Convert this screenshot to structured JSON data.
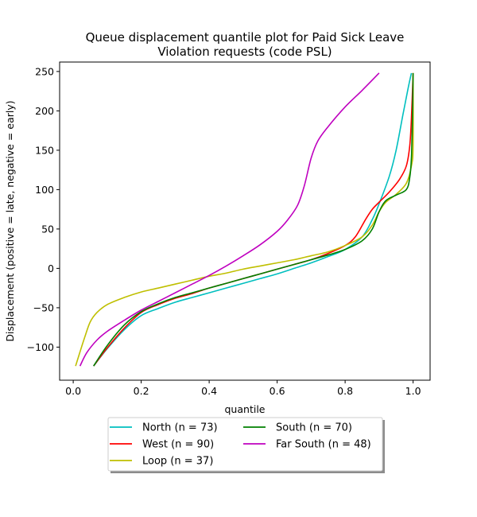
{
  "chart_data": {
    "type": "line",
    "title_lines": [
      "Queue displacement quantile plot for Paid Sick Leave",
      "Violation  requests (code PSL)"
    ],
    "xlabel": "quantile",
    "ylabel": "Displacement (positive = late, negative = early)",
    "xlim": [
      -0.04,
      1.05
    ],
    "ylim": [
      -142,
      262
    ],
    "xticks": [
      0.0,
      0.2,
      0.4,
      0.6,
      0.8,
      1.0
    ],
    "xtick_labels": [
      "0.0",
      "0.2",
      "0.4",
      "0.6",
      "0.8",
      "1.0"
    ],
    "yticks": [
      -100,
      -50,
      0,
      50,
      100,
      150,
      200,
      250
    ],
    "ytick_labels": [
      "−100",
      "−50",
      "0",
      "50",
      "100",
      "150",
      "200",
      "250"
    ],
    "grid": false,
    "legend_position": "bottom-center",
    "series": [
      {
        "name": "North (n = 73)",
        "color": "#00bfbf",
        "points": [
          [
            0.06,
            -124
          ],
          [
            0.1,
            -102
          ],
          [
            0.15,
            -78
          ],
          [
            0.2,
            -60
          ],
          [
            0.25,
            -51
          ],
          [
            0.3,
            -43
          ],
          [
            0.35,
            -37
          ],
          [
            0.4,
            -31
          ],
          [
            0.45,
            -25
          ],
          [
            0.5,
            -19
          ],
          [
            0.55,
            -13
          ],
          [
            0.6,
            -7
          ],
          [
            0.65,
            0
          ],
          [
            0.7,
            7
          ],
          [
            0.75,
            15
          ],
          [
            0.8,
            24
          ],
          [
            0.85,
            40
          ],
          [
            0.88,
            62
          ],
          [
            0.9,
            82
          ],
          [
            0.93,
            117
          ],
          [
            0.95,
            150
          ],
          [
            0.97,
            195
          ],
          [
            0.985,
            228
          ],
          [
            0.995,
            248
          ]
        ]
      },
      {
        "name": "West (n = 90)",
        "color": "#ff0000",
        "points": [
          [
            0.06,
            -124
          ],
          [
            0.1,
            -101
          ],
          [
            0.15,
            -76
          ],
          [
            0.2,
            -56
          ],
          [
            0.25,
            -46
          ],
          [
            0.3,
            -38
          ],
          [
            0.35,
            -32
          ],
          [
            0.4,
            -25
          ],
          [
            0.45,
            -19
          ],
          [
            0.5,
            -13
          ],
          [
            0.55,
            -7
          ],
          [
            0.6,
            -1
          ],
          [
            0.65,
            5
          ],
          [
            0.7,
            11
          ],
          [
            0.75,
            19
          ],
          [
            0.8,
            29
          ],
          [
            0.83,
            40
          ],
          [
            0.86,
            62
          ],
          [
            0.88,
            75
          ],
          [
            0.9,
            84
          ],
          [
            0.93,
            97
          ],
          [
            0.96,
            113
          ],
          [
            0.98,
            130
          ],
          [
            0.99,
            155
          ],
          [
            0.995,
            190
          ],
          [
            1.0,
            248
          ]
        ]
      },
      {
        "name": "Loop (n = 37)",
        "color": "#bfbf00",
        "points": [
          [
            0.007,
            -124
          ],
          [
            0.02,
            -106
          ],
          [
            0.035,
            -86
          ],
          [
            0.05,
            -68
          ],
          [
            0.07,
            -56
          ],
          [
            0.1,
            -46
          ],
          [
            0.15,
            -37
          ],
          [
            0.2,
            -30
          ],
          [
            0.25,
            -25
          ],
          [
            0.3,
            -20
          ],
          [
            0.35,
            -15
          ],
          [
            0.4,
            -10
          ],
          [
            0.45,
            -6
          ],
          [
            0.5,
            -1
          ],
          [
            0.55,
            3
          ],
          [
            0.6,
            7
          ],
          [
            0.65,
            11
          ],
          [
            0.7,
            16
          ],
          [
            0.75,
            21
          ],
          [
            0.8,
            29
          ],
          [
            0.85,
            40
          ],
          [
            0.88,
            55
          ],
          [
            0.9,
            72
          ],
          [
            0.92,
            84
          ],
          [
            0.95,
            94
          ],
          [
            0.98,
            108
          ],
          [
            0.995,
            130
          ],
          [
            1.0,
            155
          ],
          [
            1.0,
            248
          ]
        ]
      },
      {
        "name": "South (n = 70)",
        "color": "#008000",
        "points": [
          [
            0.06,
            -124
          ],
          [
            0.1,
            -98
          ],
          [
            0.15,
            -72
          ],
          [
            0.2,
            -55
          ],
          [
            0.25,
            -45
          ],
          [
            0.3,
            -37
          ],
          [
            0.35,
            -31
          ],
          [
            0.4,
            -25
          ],
          [
            0.45,
            -19
          ],
          [
            0.5,
            -13
          ],
          [
            0.55,
            -7
          ],
          [
            0.6,
            -1
          ],
          [
            0.65,
            5
          ],
          [
            0.7,
            11
          ],
          [
            0.75,
            17
          ],
          [
            0.8,
            24
          ],
          [
            0.85,
            35
          ],
          [
            0.88,
            50
          ],
          [
            0.9,
            72
          ],
          [
            0.92,
            86
          ],
          [
            0.95,
            93
          ],
          [
            0.98,
            100
          ],
          [
            0.99,
            115
          ],
          [
            0.995,
            140
          ],
          [
            0.998,
            190
          ],
          [
            1.0,
            248
          ]
        ]
      },
      {
        "name": "Far South (n = 48)",
        "color": "#bf00bf",
        "points": [
          [
            0.02,
            -124
          ],
          [
            0.04,
            -107
          ],
          [
            0.07,
            -91
          ],
          [
            0.1,
            -80
          ],
          [
            0.15,
            -66
          ],
          [
            0.2,
            -53
          ],
          [
            0.25,
            -42
          ],
          [
            0.3,
            -31
          ],
          [
            0.35,
            -20
          ],
          [
            0.4,
            -9
          ],
          [
            0.45,
            3
          ],
          [
            0.5,
            16
          ],
          [
            0.55,
            30
          ],
          [
            0.6,
            47
          ],
          [
            0.63,
            61
          ],
          [
            0.66,
            80
          ],
          [
            0.68,
            105
          ],
          [
            0.7,
            140
          ],
          [
            0.72,
            162
          ],
          [
            0.75,
            180
          ],
          [
            0.8,
            205
          ],
          [
            0.85,
            226
          ],
          [
            0.9,
            248
          ]
        ]
      }
    ]
  }
}
